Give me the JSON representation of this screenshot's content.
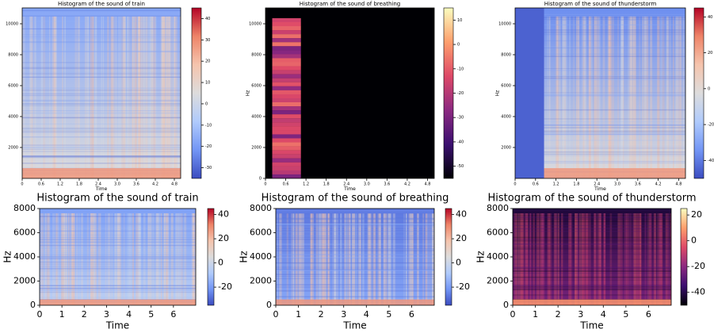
{
  "chart_data": [
    {
      "type": "heatmap",
      "title": "Histogram of the sound of train",
      "xlabel": "Time",
      "xlim": [
        0,
        5
      ],
      "xticks": [
        0,
        0.6,
        1.2,
        1.8,
        2.4,
        {
          "value": 3,
          "label": "3.0"
        },
        3.6,
        4.2,
        4.8
      ],
      "ylim": [
        0,
        11025
      ],
      "yticks": [
        2000,
        4000,
        6000,
        8000,
        10000
      ],
      "clim": [
        -35,
        45
      ],
      "cticks": [
        40,
        30,
        20,
        10,
        0,
        -10,
        -20,
        -30
      ],
      "colormap": [
        "#3b4cc0",
        "#7396f5",
        "#b0cbfc",
        "#dddcdc",
        "#f5c4ad",
        "#ee8468",
        "#b40426"
      ]
    },
    {
      "type": "heatmap",
      "title": "Histogram of the sound of breathing",
      "xlabel": "Time",
      "ylabel": "Hz",
      "xlim": [
        0,
        5
      ],
      "xticks": [
        0,
        0.6,
        1.2,
        1.8,
        2.4,
        {
          "value": 3,
          "label": "3.0"
        },
        3.6,
        4.2,
        4.8
      ],
      "ylim": [
        0,
        11025
      ],
      "yticks": [
        0,
        2000,
        4000,
        6000,
        8000,
        10000
      ],
      "clim": [
        -55,
        15
      ],
      "cticks": [
        10,
        0,
        -10,
        -20,
        -30,
        -40,
        -50
      ],
      "colormap": [
        "#000004",
        "#3b0f70",
        "#8c2981",
        "#de4968",
        "#fe9f6d",
        "#fcfdbf"
      ]
    },
    {
      "type": "heatmap",
      "title": "Histogram of the sound of thunderstorm",
      "xlabel": "Time",
      "ylabel": "Hz",
      "xlim": [
        0,
        5
      ],
      "xticks": [
        0,
        0.6,
        1.2,
        1.8,
        2.4,
        {
          "value": 3,
          "label": "3.0"
        },
        3.6,
        4.2,
        4.8
      ],
      "ylim": [
        0,
        11025
      ],
      "yticks": [
        2000,
        4000,
        6000,
        8000,
        10000
      ],
      "clim": [
        -50,
        45
      ],
      "cticks": [
        40,
        20,
        0,
        -20,
        -40
      ],
      "colormap": [
        "#3b4cc0",
        "#7396f5",
        "#b0cbfc",
        "#dddcdc",
        "#f5c4ad",
        "#ee8468",
        "#b40426"
      ]
    },
    {
      "type": "heatmap",
      "title": "Histogram of the sound of train",
      "xlabel": "Time",
      "ylabel": "Hz",
      "xlim": [
        0,
        7
      ],
      "xticks": [
        0,
        1,
        2,
        3,
        4,
        5,
        6
      ],
      "ylim": [
        0,
        8000
      ],
      "yticks": [
        0,
        2000,
        4000,
        6000,
        8000
      ],
      "clim": [
        -35,
        45
      ],
      "cticks": [
        40,
        20,
        0,
        -20
      ],
      "colormap": [
        "#3b4cc0",
        "#7396f5",
        "#b0cbfc",
        "#dddcdc",
        "#f5c4ad",
        "#ee8468",
        "#b40426"
      ]
    },
    {
      "type": "heatmap",
      "title": "Histogram of the sound of breathing",
      "xlabel": "Time",
      "ylabel": "Hz",
      "xlim": [
        0,
        7
      ],
      "xticks": [
        0,
        1,
        2,
        3,
        4,
        5,
        6
      ],
      "ylim": [
        0,
        8000
      ],
      "yticks": [
        0,
        2000,
        4000,
        6000,
        8000
      ],
      "clim": [
        -35,
        45
      ],
      "cticks": [
        40,
        20,
        0,
        -20
      ],
      "colormap": [
        "#3b4cc0",
        "#7396f5",
        "#b0cbfc",
        "#dddcdc",
        "#f5c4ad",
        "#ee8468",
        "#b40426"
      ]
    },
    {
      "type": "heatmap",
      "title": "Histogram of the sound of thunderstorm",
      "xlabel": "Time",
      "ylabel": "Hz",
      "xlim": [
        0,
        7
      ],
      "xticks": [
        0,
        1,
        2,
        3,
        4,
        5,
        6
      ],
      "ylim": [
        0,
        8000
      ],
      "yticks": [
        0,
        2000,
        4000,
        6000,
        8000
      ],
      "clim": [
        -50,
        25
      ],
      "cticks": [
        20,
        0,
        -20,
        -40
      ],
      "colormap": [
        "#000004",
        "#3b0f70",
        "#8c2981",
        "#de4968",
        "#fe9f6d",
        "#fcfdbf"
      ]
    }
  ]
}
